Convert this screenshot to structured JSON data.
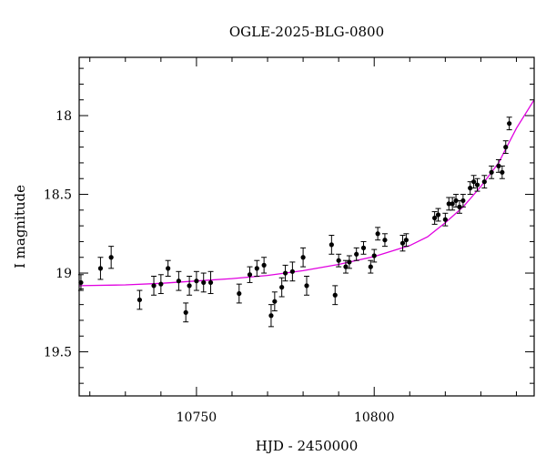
{
  "chart_data": {
    "type": "scatter",
    "title": "OGLE-2025-BLG-0800",
    "xlabel": "HJD - 2450000",
    "ylabel": "I magnitude",
    "xlim": [
      10717,
      10845
    ],
    "ylim": [
      19.78,
      17.63
    ],
    "y_inverted": true,
    "grid": false,
    "x_ticks": [
      10750,
      10800
    ],
    "x_tick_labels": [
      "10750",
      "10800"
    ],
    "y_ticks": [
      18,
      18.5,
      19,
      19.5
    ],
    "y_tick_labels": [
      "18",
      "18.5",
      "19",
      "19.5"
    ],
    "colors": {
      "model": "#e000e0",
      "points": "#000000"
    },
    "series": [
      {
        "kind": "points_with_errorbars",
        "x": [
          10717.5,
          10723,
          10726,
          10734,
          10738,
          10740,
          10742,
          10745,
          10747,
          10748,
          10750,
          10752,
          10754,
          10762,
          10765,
          10767,
          10769,
          10771,
          10772,
          10774,
          10775,
          10777,
          10780,
          10781,
          10788,
          10789,
          10790,
          10792,
          10793,
          10795,
          10797,
          10799,
          10800,
          10801,
          10803,
          10808,
          10809,
          10817,
          10818,
          10820,
          10821,
          10822,
          10823,
          10824,
          10825,
          10827,
          10828,
          10829,
          10831,
          10833,
          10835,
          10836,
          10837,
          10838
        ],
        "y": [
          19.06,
          18.97,
          18.9,
          19.17,
          19.08,
          19.07,
          18.97,
          19.05,
          19.25,
          19.08,
          19.05,
          19.06,
          19.06,
          19.13,
          19.01,
          18.97,
          18.95,
          19.27,
          19.18,
          19.09,
          19.0,
          18.99,
          18.9,
          19.08,
          18.82,
          19.14,
          18.92,
          18.96,
          18.93,
          18.88,
          18.84,
          18.96,
          18.89,
          18.75,
          18.79,
          18.81,
          18.79,
          18.65,
          18.63,
          18.66,
          18.56,
          18.56,
          18.54,
          18.58,
          18.54,
          18.46,
          18.42,
          18.44,
          18.42,
          18.36,
          18.32,
          18.36,
          18.2,
          18.05
        ],
        "yerr": [
          0.05,
          0.07,
          0.07,
          0.06,
          0.06,
          0.06,
          0.05,
          0.06,
          0.06,
          0.06,
          0.06,
          0.06,
          0.07,
          0.06,
          0.05,
          0.05,
          0.05,
          0.07,
          0.06,
          0.06,
          0.05,
          0.06,
          0.06,
          0.06,
          0.06,
          0.06,
          0.04,
          0.04,
          0.04,
          0.04,
          0.04,
          0.04,
          0.04,
          0.04,
          0.04,
          0.05,
          0.04,
          0.04,
          0.04,
          0.04,
          0.04,
          0.04,
          0.04,
          0.04,
          0.04,
          0.04,
          0.04,
          0.04,
          0.04,
          0.04,
          0.04,
          0.04,
          0.04,
          0.04
        ]
      },
      {
        "kind": "model_curve",
        "x": [
          10717,
          10730,
          10740,
          10750,
          10760,
          10770,
          10780,
          10790,
          10800,
          10810,
          10815,
          10820,
          10825,
          10830,
          10835,
          10840,
          10845
        ],
        "y": [
          19.08,
          19.075,
          19.065,
          19.05,
          19.035,
          19.015,
          18.985,
          18.945,
          18.895,
          18.825,
          18.77,
          18.68,
          18.58,
          18.45,
          18.3,
          18.08,
          17.9
        ]
      }
    ]
  }
}
